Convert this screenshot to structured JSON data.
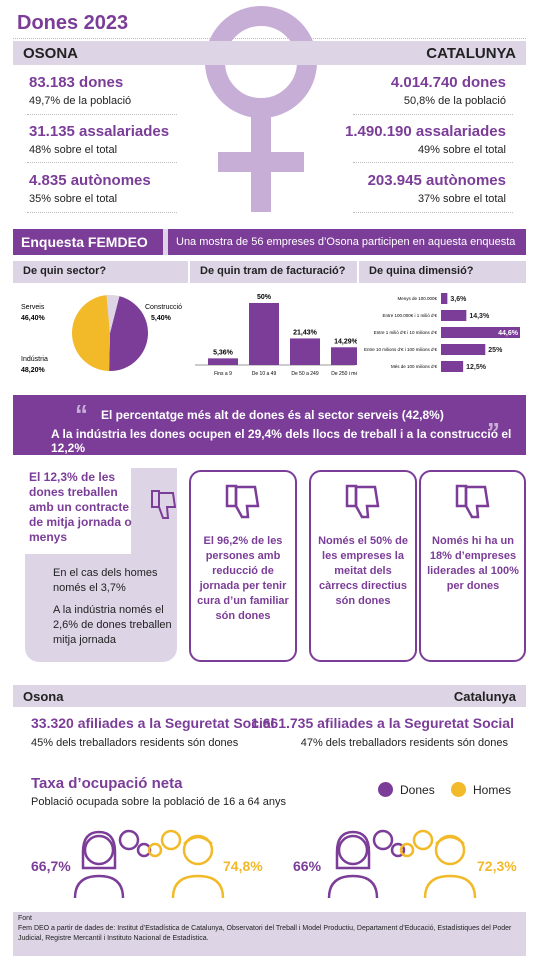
{
  "title": "Dones 2023",
  "left_region": "OSONA",
  "right_region": "CATALUNYA",
  "osona": [
    {
      "big": "83.183 dones",
      "small": "49,7% de la població"
    },
    {
      "big": "31.135 assalariades",
      "small": "48% sobre el total"
    },
    {
      "big": "4.835 autònomes",
      "small": "35% sobre el total"
    }
  ],
  "catalunya": [
    {
      "big": "4.014.740 dones",
      "small": "50,8% de la població"
    },
    {
      "big": "1.490.190 assalariades",
      "small": "49% sobre el total"
    },
    {
      "big": "203.945 autònomes",
      "small": "37% sobre el total"
    }
  ],
  "survey": {
    "title": "Enquesta FEMDEO",
    "note": "Una mostra de 56 empreses d’Osona participen en aquesta enquesta",
    "q1": "De quin sector?",
    "q2": "De quin tram de facturació?",
    "q3": "De quina dimensió?"
  },
  "colors": {
    "purple": "#7b3d98",
    "yellow": "#f2b928",
    "light": "#ddd4e6",
    "pale": "#c7aed6"
  },
  "pie": {
    "labels": [
      "Serveis",
      "Indústria",
      "Construcció"
    ],
    "values_text": [
      "46,40%",
      "48,20%",
      "5,40%"
    ],
    "values": [
      46.4,
      48.2,
      5.4
    ]
  },
  "chart_data": [
    {
      "type": "pie",
      "categories": [
        "Serveis",
        "Indústria",
        "Construcció"
      ],
      "values": [
        46.4,
        48.2,
        5.4
      ]
    },
    {
      "type": "bar",
      "categories": [
        "Fins a 9",
        "De 10 a 49",
        "De 50 a 249",
        "De 250 i més"
      ],
      "values": [
        5.36,
        50,
        21.43,
        14.29
      ],
      "labels": [
        "5,36%",
        "50%",
        "21,43%",
        "14,29%"
      ]
    },
    {
      "type": "bar",
      "categories": [
        "Menys de 100.000€",
        "Entre 100.000€ i 1 milió d’€",
        "Entre 1 milió d’€ i 10 milions d’€",
        "Entre 10 milions d’€ i 100 milions d’€",
        "Més de 100 milions d’€"
      ],
      "values": [
        3.6,
        14.3,
        44.6,
        25,
        12.5
      ],
      "labels": [
        "3,6%",
        "14,3%",
        "44,6%",
        "25%",
        "12,5%"
      ]
    }
  ],
  "quote": {
    "line1": "El percentatge més alt de dones és al sector serveis (42,8%)",
    "line2": "A la indústria les dones ocupen el 29,4% dels llocs de treball i a la construcció el 12,2%"
  },
  "left_box": {
    "head": "El 12,3% de les dones treballen amb un contracte de mitja jornada o menys",
    "p1": "En el cas dels homes només el 3,7%",
    "p2": "A la indústria només el 2,6% de dones treballen mitja jornada"
  },
  "boxes": [
    "El 96,2% de les persones amb reducció de jornada per tenir cura d’un familiar són dones",
    "Només el 50% de les empreses la meitat dels càrrecs directius són dones",
    "Només hi ha un 18% d’empreses liderades al 100% per dones"
  ],
  "ss": {
    "osona_label": "Osona",
    "cat_label": "Catalunya",
    "osona_big": "33.320 afiliades a la Seguretat Social",
    "osona_small": "45% dels treballadors residents són dones",
    "cat_big": "1.661.735 afiliades a la Seguretat Social",
    "cat_small": "47% dels treballadors residents són dones"
  },
  "taxa": {
    "title": "Taxa d’ocupació neta",
    "sub": "Població ocupada sobre la població de 16 a 64 anys",
    "legend_women": "Dones",
    "legend_men": "Homes",
    "osona_women": "66,7%",
    "osona_men": "74,8%",
    "cat_women": "66%",
    "cat_men": "72,3%"
  },
  "font": {
    "label": "Font",
    "text": "Fem DEO a partir de dades de: Institut d’Estadística de Catalunya, Observatori del Treball i Model Productiu, Departament d’Educació, Estadístiques del Poder Judicial, Registre Mercantil i Instituto Nacional de Estadística."
  }
}
